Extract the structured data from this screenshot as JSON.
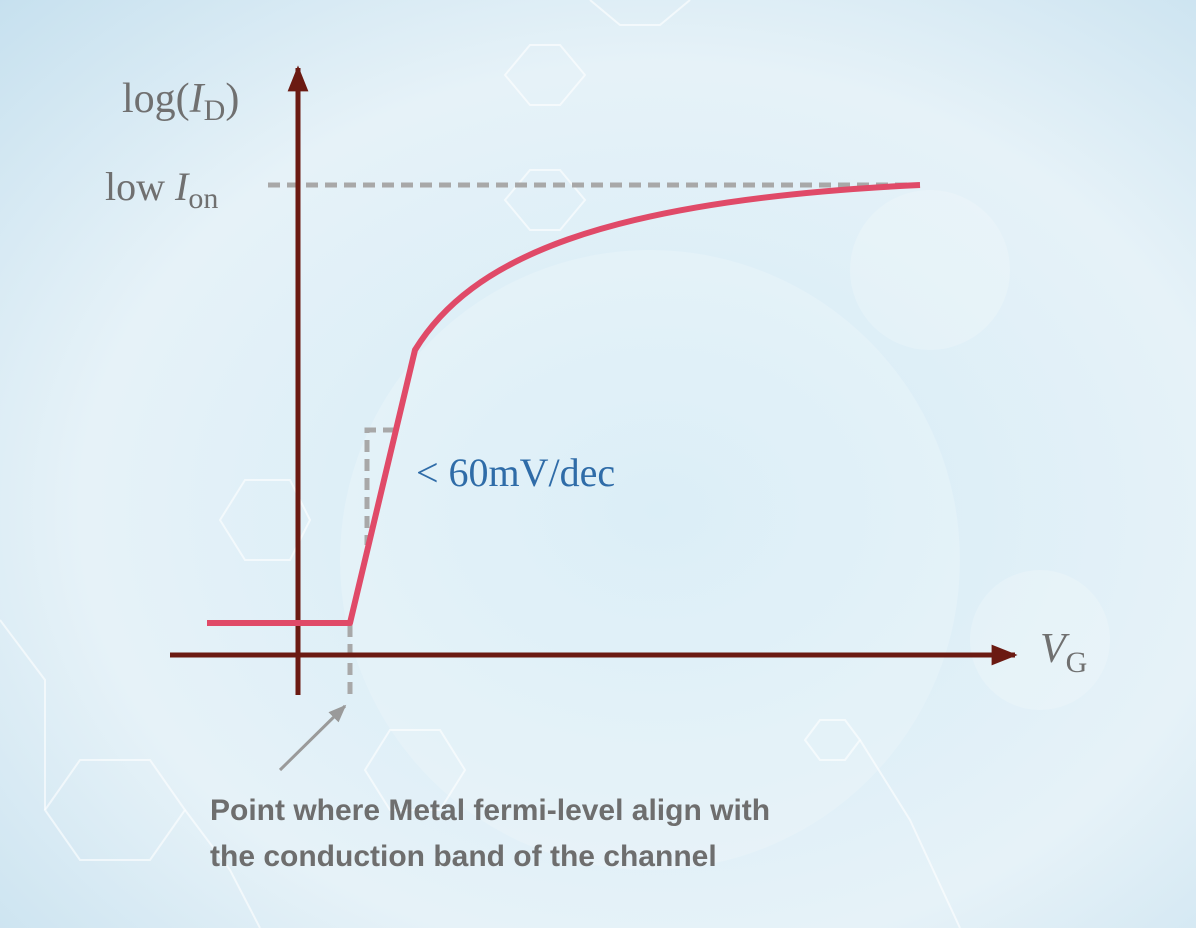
{
  "y_axis_label": {
    "prefix": "log(",
    "symbol": "I",
    "subscript": "D",
    "suffix": ")"
  },
  "x_axis_label": {
    "symbol": "V",
    "subscript": "G"
  },
  "on_level_label": {
    "prefix": "low ",
    "symbol": "I",
    "subscript": "on"
  },
  "slope_label": "< 60mV/dec",
  "annotation": {
    "lines": [
      "Point where Metal fermi-level align with",
      "the conduction band of the channel"
    ]
  }
}
